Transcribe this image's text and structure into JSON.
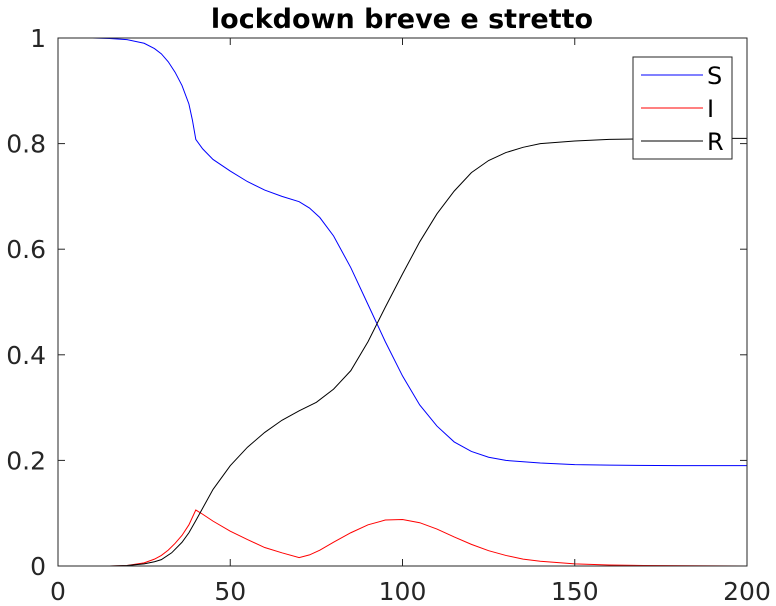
{
  "chart_data": {
    "type": "line",
    "title": "lockdown breve e stretto",
    "xlabel": "",
    "ylabel": "",
    "xlim": [
      0,
      200
    ],
    "ylim": [
      0,
      1
    ],
    "x_ticks": [
      0,
      50,
      100,
      150,
      200
    ],
    "x_tick_labels": [
      "0",
      "50",
      "100",
      "150",
      "200"
    ],
    "y_ticks": [
      0,
      0.2,
      0.4,
      0.6,
      0.8,
      1
    ],
    "y_tick_labels": [
      "0",
      "0.2",
      "0.4",
      "0.6",
      "0.8",
      "1"
    ],
    "grid": false,
    "box": true,
    "legend": {
      "location": "top-right",
      "boxed": true
    },
    "series": [
      {
        "name": "S",
        "color": "#0000ff",
        "points": [
          [
            0,
            1.0
          ],
          [
            10,
            1.0
          ],
          [
            15,
            0.999
          ],
          [
            20,
            0.997
          ],
          [
            25,
            0.99
          ],
          [
            28,
            0.98
          ],
          [
            30,
            0.97
          ],
          [
            32,
            0.955
          ],
          [
            34,
            0.935
          ],
          [
            36,
            0.91
          ],
          [
            38,
            0.875
          ],
          [
            39,
            0.845
          ],
          [
            40,
            0.808
          ],
          [
            42,
            0.79
          ],
          [
            45,
            0.77
          ],
          [
            50,
            0.748
          ],
          [
            55,
            0.728
          ],
          [
            60,
            0.712
          ],
          [
            65,
            0.7
          ],
          [
            70,
            0.69
          ],
          [
            73,
            0.678
          ],
          [
            76,
            0.66
          ],
          [
            80,
            0.625
          ],
          [
            85,
            0.565
          ],
          [
            90,
            0.495
          ],
          [
            95,
            0.425
          ],
          [
            100,
            0.36
          ],
          [
            105,
            0.305
          ],
          [
            110,
            0.265
          ],
          [
            115,
            0.235
          ],
          [
            120,
            0.217
          ],
          [
            125,
            0.206
          ],
          [
            130,
            0.2
          ],
          [
            140,
            0.195
          ],
          [
            150,
            0.192
          ],
          [
            160,
            0.191
          ],
          [
            180,
            0.19
          ],
          [
            200,
            0.19
          ]
        ]
      },
      {
        "name": "I",
        "color": "#ff0000",
        "points": [
          [
            0,
            0.0
          ],
          [
            15,
            0.0
          ],
          [
            20,
            0.001
          ],
          [
            25,
            0.006
          ],
          [
            28,
            0.013
          ],
          [
            30,
            0.02
          ],
          [
            32,
            0.03
          ],
          [
            34,
            0.043
          ],
          [
            36,
            0.058
          ],
          [
            38,
            0.078
          ],
          [
            40,
            0.106
          ],
          [
            42,
            0.098
          ],
          [
            45,
            0.085
          ],
          [
            50,
            0.066
          ],
          [
            55,
            0.05
          ],
          [
            60,
            0.035
          ],
          [
            65,
            0.025
          ],
          [
            70,
            0.016
          ],
          [
            73,
            0.021
          ],
          [
            76,
            0.03
          ],
          [
            80,
            0.045
          ],
          [
            85,
            0.063
          ],
          [
            90,
            0.078
          ],
          [
            95,
            0.087
          ],
          [
            100,
            0.088
          ],
          [
            105,
            0.082
          ],
          [
            110,
            0.07
          ],
          [
            115,
            0.055
          ],
          [
            120,
            0.041
          ],
          [
            125,
            0.029
          ],
          [
            130,
            0.02
          ],
          [
            135,
            0.013
          ],
          [
            140,
            0.009
          ],
          [
            150,
            0.004
          ],
          [
            160,
            0.002
          ],
          [
            170,
            0.001
          ],
          [
            200,
            0.0
          ]
        ]
      },
      {
        "name": "R",
        "color": "#000000",
        "points": [
          [
            0,
            0.0
          ],
          [
            15,
            0.0
          ],
          [
            20,
            0.001
          ],
          [
            25,
            0.004
          ],
          [
            28,
            0.008
          ],
          [
            30,
            0.012
          ],
          [
            33,
            0.025
          ],
          [
            36,
            0.045
          ],
          [
            38,
            0.063
          ],
          [
            40,
            0.086
          ],
          [
            45,
            0.145
          ],
          [
            50,
            0.19
          ],
          [
            55,
            0.225
          ],
          [
            60,
            0.253
          ],
          [
            65,
            0.276
          ],
          [
            70,
            0.294
          ],
          [
            75,
            0.31
          ],
          [
            80,
            0.335
          ],
          [
            85,
            0.37
          ],
          [
            90,
            0.425
          ],
          [
            95,
            0.49
          ],
          [
            100,
            0.553
          ],
          [
            105,
            0.614
          ],
          [
            110,
            0.667
          ],
          [
            115,
            0.71
          ],
          [
            120,
            0.745
          ],
          [
            125,
            0.768
          ],
          [
            130,
            0.783
          ],
          [
            135,
            0.793
          ],
          [
            140,
            0.8
          ],
          [
            150,
            0.805
          ],
          [
            160,
            0.808
          ],
          [
            180,
            0.81
          ],
          [
            200,
            0.81
          ]
        ]
      }
    ]
  }
}
